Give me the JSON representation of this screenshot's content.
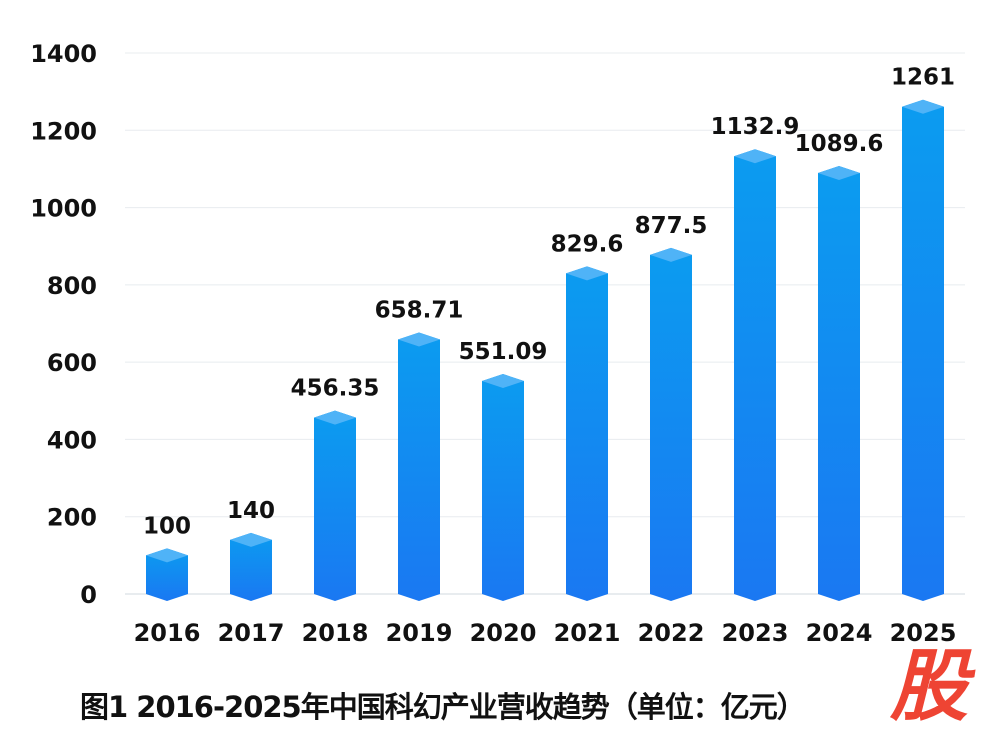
{
  "chart_data": {
    "type": "bar",
    "title": "图1 2016-2025年中国科幻产业营收趋势（单位：亿元）",
    "xlabel": "",
    "ylabel": "",
    "categories": [
      "2016",
      "2017",
      "2018",
      "2019",
      "2020",
      "2021",
      "2022",
      "2023",
      "2024",
      "2025"
    ],
    "values": [
      100,
      140,
      456.35,
      658.71,
      551.09,
      829.6,
      877.5,
      1132.9,
      1089.6,
      1261
    ],
    "value_labels": [
      "100",
      "140",
      "456.35",
      "658.71",
      "551.09",
      "829.6",
      "877.5",
      "1132.9",
      "1089.6",
      "1261"
    ],
    "ylim": [
      0,
      1400
    ],
    "yticks": [
      "0",
      "200",
      "400",
      "600",
      "800",
      "1000",
      "1200",
      "1400"
    ],
    "grid": true,
    "colors": {
      "bar_top": "#0b9cf0",
      "bar_bottom": "#1a78f2",
      "cap": "#4fb3f7",
      "grid": "#e8ecef"
    }
  },
  "watermark": "股"
}
